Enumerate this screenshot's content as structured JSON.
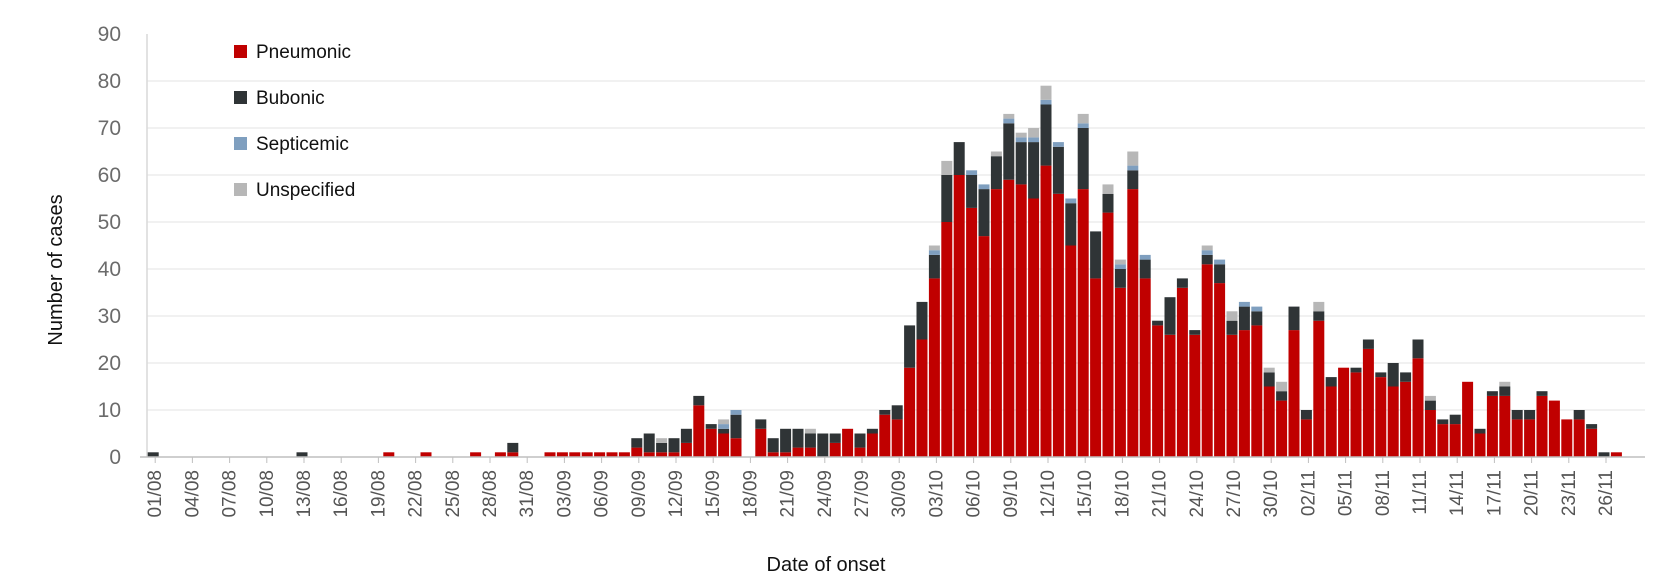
{
  "chart_data": {
    "type": "bar",
    "stacked": true,
    "xlabel": "Date of onset",
    "ylabel": "Number of cases",
    "ylim": [
      0,
      90
    ],
    "yticks": [
      0,
      10,
      20,
      30,
      40,
      50,
      60,
      70,
      80,
      90
    ],
    "grid": true,
    "legend_position": "top-left",
    "x_tick_labels": [
      "01/08",
      "04/08",
      "07/08",
      "10/08",
      "13/08",
      "16/08",
      "19/08",
      "22/08",
      "25/08",
      "28/08",
      "31/08",
      "03/09",
      "06/09",
      "09/09",
      "12/09",
      "15/09",
      "18/09",
      "21/09",
      "24/09",
      "27/09",
      "30/09",
      "03/10",
      "06/10",
      "09/10",
      "12/10",
      "15/10",
      "18/10",
      "21/10",
      "24/10",
      "27/10",
      "30/10",
      "02/11",
      "05/11",
      "08/11",
      "11/11",
      "14/11",
      "17/11",
      "20/11",
      "23/11",
      "26/11"
    ],
    "x_tick_step": 3,
    "series": [
      {
        "name": "Pneumonic",
        "color": "#c00000",
        "values": [
          0,
          0,
          0,
          0,
          0,
          0,
          0,
          0,
          0,
          0,
          0,
          0,
          0,
          0,
          0,
          0,
          0,
          0,
          0,
          1,
          0,
          0,
          1,
          0,
          0,
          0,
          1,
          0,
          1,
          1,
          0,
          0,
          1,
          1,
          1,
          1,
          1,
          1,
          1,
          2,
          1,
          1,
          1,
          3,
          11,
          6,
          5,
          4,
          0,
          6,
          1,
          1,
          2,
          2,
          0,
          3,
          6,
          2,
          5,
          9,
          8,
          19,
          25,
          38,
          50,
          60,
          53,
          47,
          57,
          59,
          58,
          55,
          62,
          56,
          45,
          57,
          38,
          52,
          36,
          57,
          38,
          28,
          26,
          36,
          26,
          41,
          37,
          26,
          27,
          28,
          15,
          12,
          27,
          8,
          29,
          15,
          19,
          18,
          23,
          17,
          15,
          16,
          21,
          10,
          7,
          7,
          16,
          5,
          13,
          13,
          8,
          8,
          13,
          12,
          8,
          8,
          6,
          0,
          1
        ]
      },
      {
        "name": "Bubonic",
        "color": "#2f3436",
        "values": [
          1,
          0,
          0,
          0,
          0,
          0,
          0,
          0,
          0,
          0,
          0,
          0,
          1,
          0,
          0,
          0,
          0,
          0,
          0,
          0,
          0,
          0,
          0,
          0,
          0,
          0,
          0,
          0,
          0,
          2,
          0,
          0,
          0,
          0,
          0,
          0,
          0,
          0,
          0,
          2,
          4,
          2,
          3,
          3,
          2,
          1,
          1,
          5,
          0,
          2,
          3,
          5,
          4,
          3,
          5,
          2,
          0,
          3,
          1,
          1,
          3,
          9,
          8,
          5,
          10,
          7,
          7,
          10,
          7,
          12,
          9,
          12,
          13,
          10,
          9,
          13,
          10,
          4,
          4,
          4,
          4,
          1,
          8,
          2,
          1,
          2,
          4,
          3,
          5,
          3,
          3,
          2,
          5,
          2,
          2,
          2,
          0,
          1,
          2,
          1,
          5,
          2,
          4,
          2,
          1,
          2,
          0,
          1,
          1,
          2,
          2,
          2,
          1,
          0,
          0,
          2,
          1,
          1,
          0
        ]
      },
      {
        "name": "Septicemic",
        "color": "#7f9fbf",
        "values": [
          0,
          0,
          0,
          0,
          0,
          0,
          0,
          0,
          0,
          0,
          0,
          0,
          0,
          0,
          0,
          0,
          0,
          0,
          0,
          0,
          0,
          0,
          0,
          0,
          0,
          0,
          0,
          0,
          0,
          0,
          0,
          0,
          0,
          0,
          0,
          0,
          0,
          0,
          0,
          0,
          0,
          0,
          0,
          0,
          0,
          0,
          1,
          1,
          0,
          0,
          0,
          0,
          0,
          0,
          0,
          0,
          0,
          0,
          0,
          0,
          0,
          0,
          0,
          1,
          0,
          0,
          1,
          1,
          0,
          1,
          1,
          1,
          1,
          1,
          1,
          1,
          0,
          0,
          1,
          1,
          1,
          0,
          0,
          0,
          0,
          1,
          1,
          0,
          1,
          1,
          0,
          0,
          0,
          0,
          0,
          0,
          0,
          0,
          0,
          0,
          0,
          0,
          0,
          0,
          0,
          0,
          0,
          0,
          0,
          0,
          0,
          0,
          0,
          0,
          0,
          0,
          0,
          0,
          0
        ]
      },
      {
        "name": "Unspecified",
        "color": "#b7b7b7",
        "values": [
          0,
          0,
          0,
          0,
          0,
          0,
          0,
          0,
          0,
          0,
          0,
          0,
          0,
          0,
          0,
          0,
          0,
          0,
          0,
          0,
          0,
          0,
          0,
          0,
          0,
          0,
          0,
          0,
          0,
          0,
          0,
          0,
          0,
          0,
          0,
          0,
          0,
          0,
          0,
          0,
          0,
          1,
          0,
          0,
          0,
          0,
          1,
          0,
          0,
          0,
          0,
          0,
          0,
          1,
          0,
          0,
          0,
          0,
          0,
          0,
          0,
          0,
          0,
          1,
          3,
          0,
          0,
          0,
          1,
          1,
          1,
          2,
          3,
          0,
          0,
          2,
          0,
          2,
          1,
          3,
          0,
          0,
          0,
          0,
          0,
          1,
          0,
          2,
          0,
          0,
          1,
          2,
          0,
          0,
          2,
          0,
          0,
          0,
          0,
          0,
          0,
          0,
          0,
          1,
          0,
          0,
          0,
          0,
          0,
          1,
          0,
          0,
          0,
          0,
          0,
          0,
          0,
          0,
          0
        ]
      }
    ]
  }
}
